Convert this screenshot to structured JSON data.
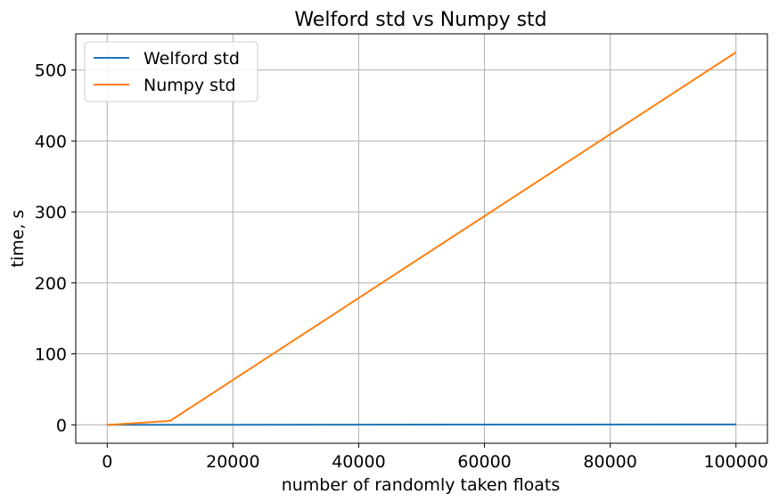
{
  "chart_data": {
    "type": "line",
    "title": "Welford std vs Numpy std",
    "xlabel": "number of randomly taken floats",
    "ylabel": "time, s",
    "xlim": [
      -5000,
      105000
    ],
    "ylim": [
      -26,
      551
    ],
    "xticks": [
      0,
      20000,
      40000,
      60000,
      80000,
      100000
    ],
    "yticks": [
      0,
      100,
      200,
      300,
      400,
      500
    ],
    "grid": true,
    "legend_position": "top-left",
    "series": [
      {
        "name": "Welford std",
        "color": "#1f77b4",
        "x": [
          0,
          1000,
          10000,
          100000
        ],
        "y": [
          0.0,
          0.01,
          0.05,
          0.5
        ]
      },
      {
        "name": "Numpy std",
        "color": "#ff7f0e",
        "x": [
          0,
          1000,
          10000,
          100000
        ],
        "y": [
          0.0,
          0.3,
          5.5,
          525
        ]
      }
    ]
  }
}
